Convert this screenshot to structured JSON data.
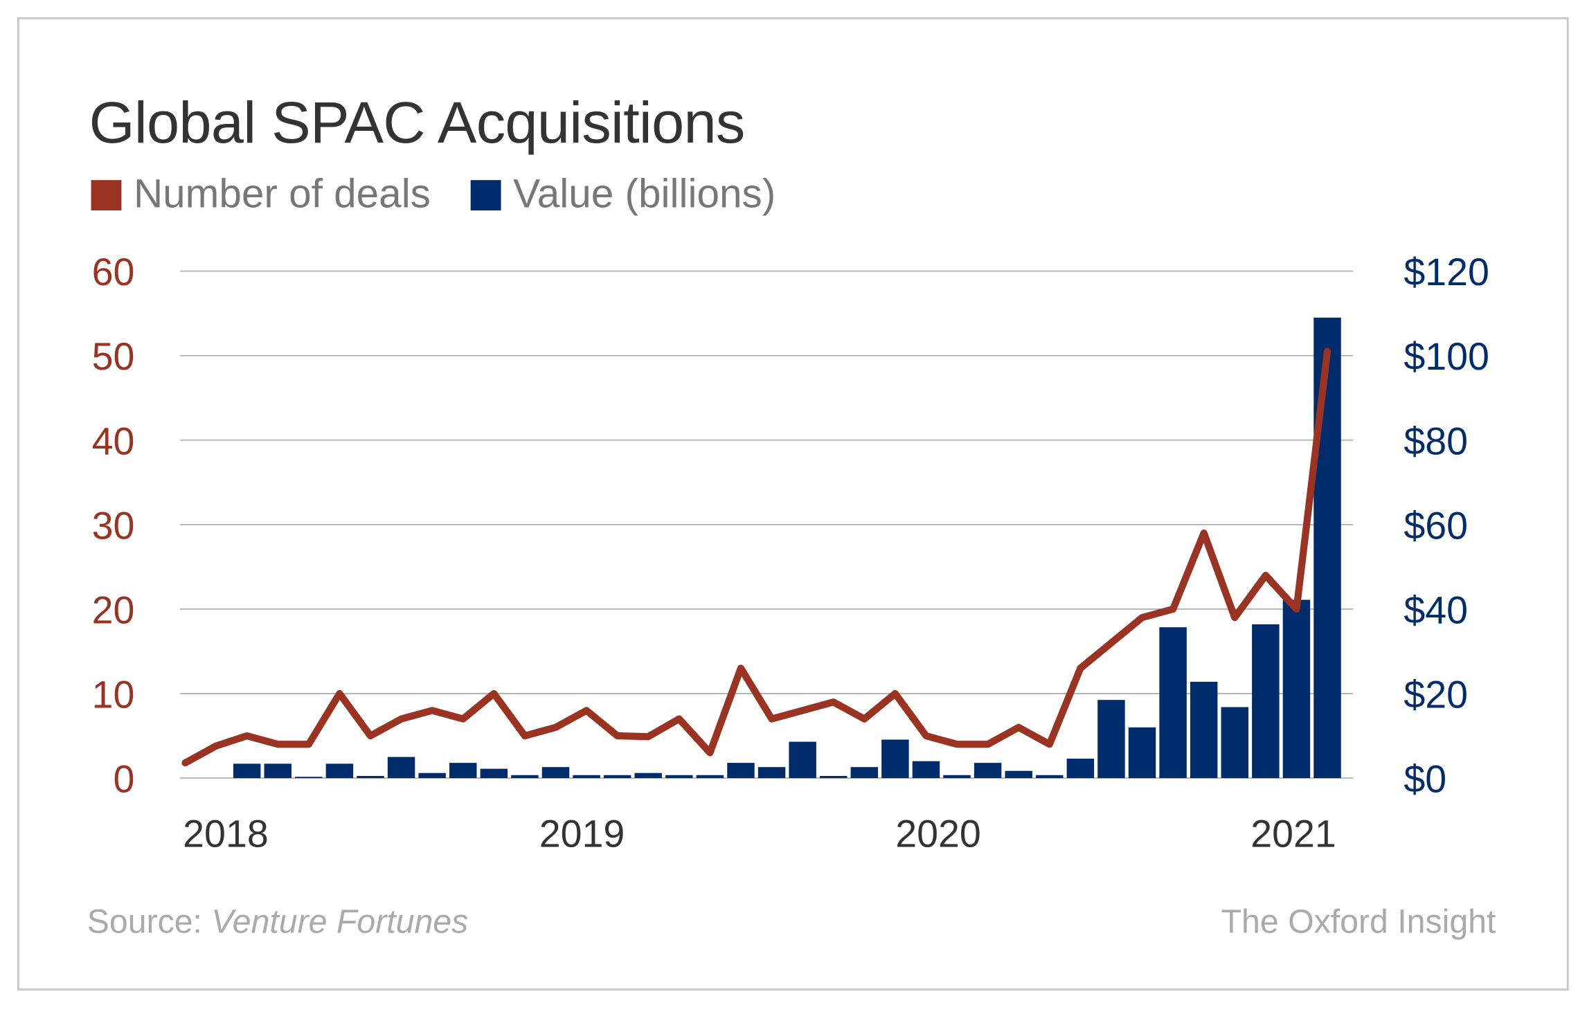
{
  "title": "Global SPAC Acquisitions",
  "footer": {
    "source_label": "Source: ",
    "source_name": "Venture Fortunes",
    "brand": "The Oxford Insight"
  },
  "chart_data": {
    "type": "bar+line",
    "title": "Global SPAC Acquisitions",
    "legend_placement": "top-left",
    "grid": true,
    "x_tick_labels": [
      "2018",
      "2019",
      "2020",
      "2021"
    ],
    "y_left": {
      "range": [
        0,
        60
      ],
      "ticks": [
        "0",
        "10",
        "20",
        "30",
        "40",
        "50",
        "60"
      ],
      "color": "#9a3322"
    },
    "y_right": {
      "range": [
        0,
        120
      ],
      "ticks": [
        "$0",
        "$20",
        "$40",
        "$60",
        "$80",
        "$100",
        "$120"
      ],
      "color": "#002c6b"
    },
    "series": [
      {
        "name": "Number of deals",
        "type": "line",
        "axis": "left",
        "color": "#9a3322",
        "values": [
          1.8,
          3.8,
          5,
          4,
          4,
          10,
          5,
          7,
          8,
          7,
          10,
          5,
          6,
          8,
          5,
          4.9,
          7,
          3,
          13,
          7,
          8,
          9,
          7,
          10,
          5,
          4,
          4,
          6,
          4,
          13,
          16,
          19,
          20,
          29,
          19,
          24,
          20,
          50.5
        ]
      },
      {
        "name": "Value (billions)",
        "type": "bar",
        "axis": "right",
        "color": "#002c6b",
        "values": [
          0,
          0,
          3.4,
          3.4,
          0.3,
          3.4,
          0.5,
          5,
          1.2,
          3.6,
          2.2,
          0.7,
          2.6,
          0.7,
          0.7,
          1.2,
          0.7,
          0.7,
          3.6,
          2.6,
          8.6,
          0.5,
          2.6,
          9.1,
          4,
          0.7,
          3.6,
          1.7,
          0.7,
          4.6,
          18.5,
          12,
          35.7,
          22.8,
          16.8,
          36.4,
          42.2,
          109
        ]
      }
    ]
  }
}
